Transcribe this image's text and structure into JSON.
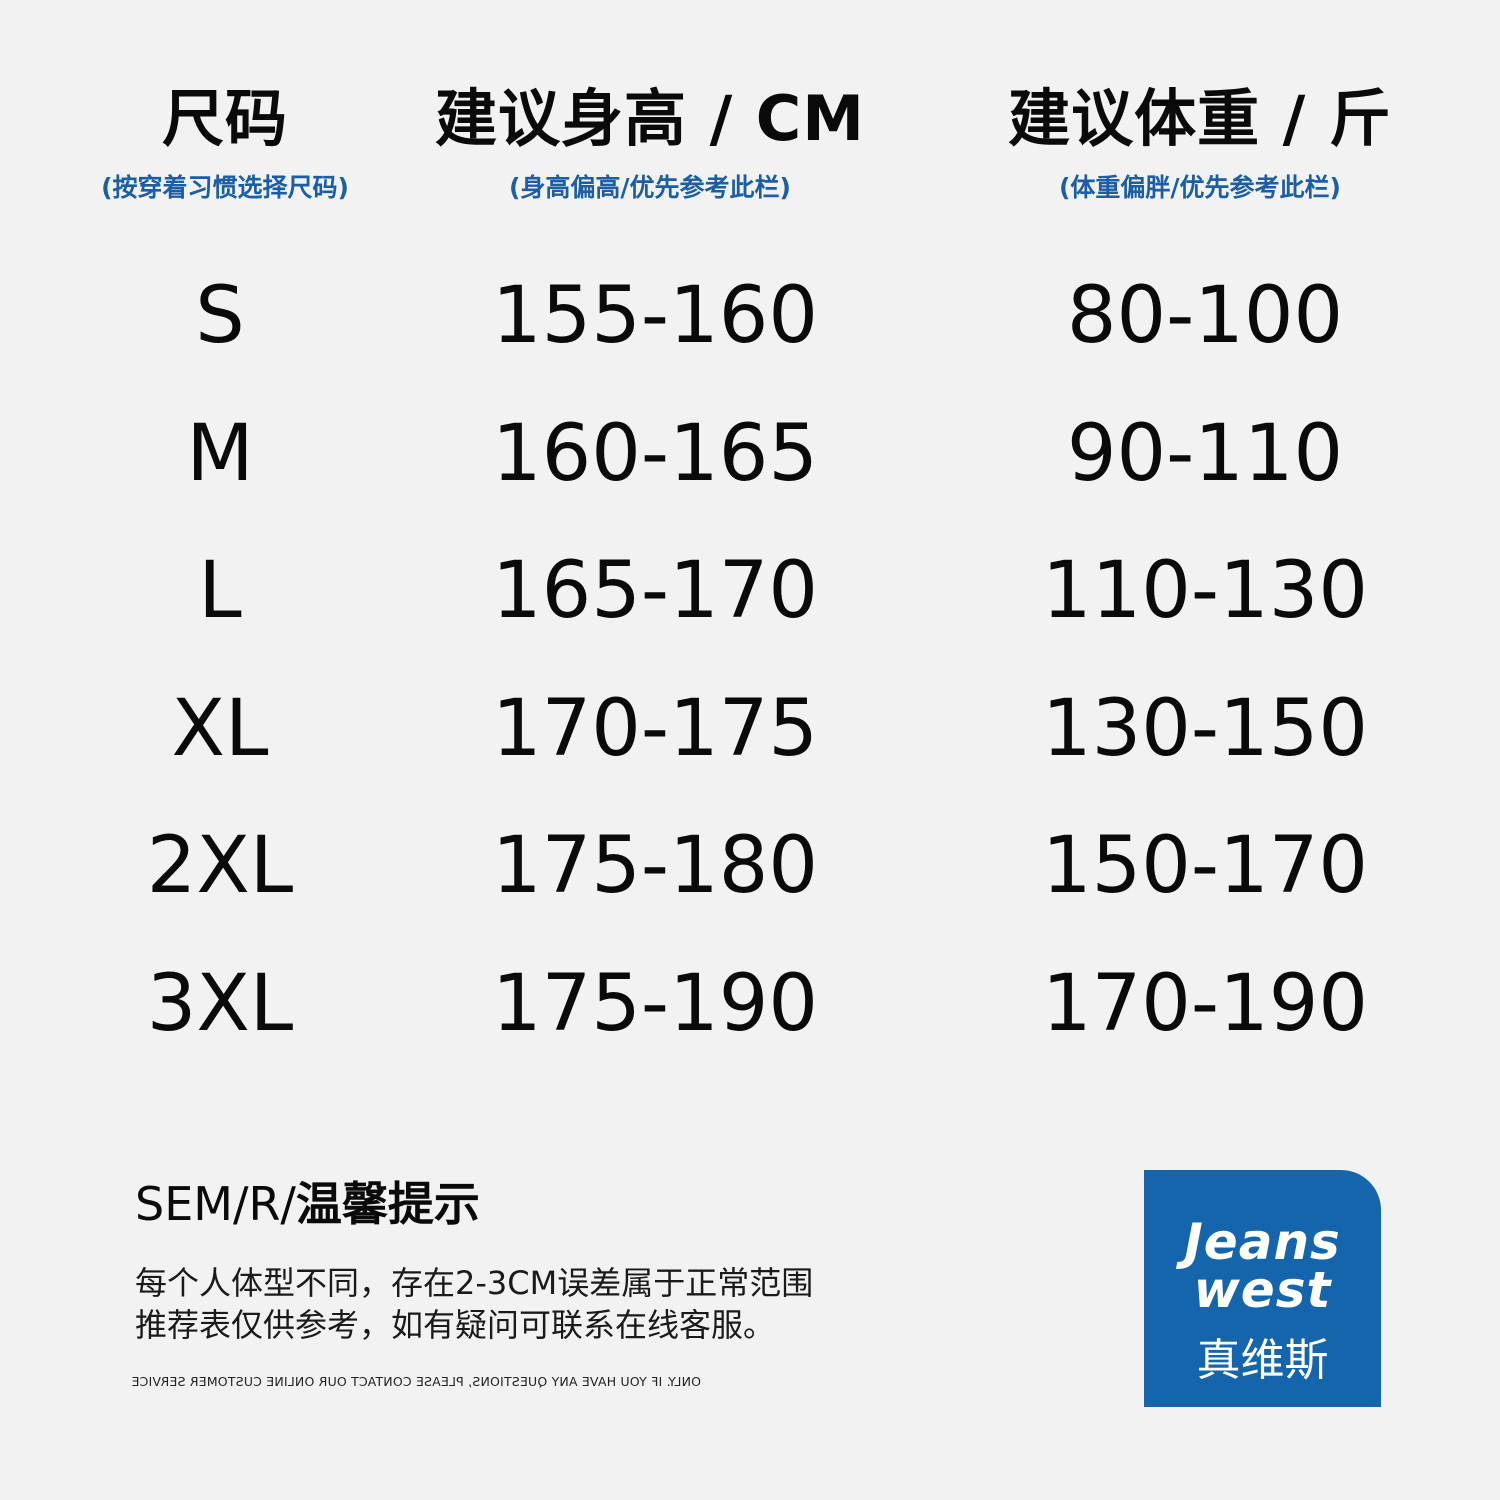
{
  "headers": [
    {
      "title": "尺码",
      "subtitle": "(按穿着习惯选择尺码)"
    },
    {
      "title": "建议身高 / CM",
      "subtitle": "(身高偏高/优先参考此栏)"
    },
    {
      "title": "建议体重 / 斤",
      "subtitle": "(体重偏胖/优先参考此栏)"
    }
  ],
  "rows": [
    {
      "size": "S",
      "height": "155-160",
      "weight": "80-100"
    },
    {
      "size": "M",
      "height": "160-165",
      "weight": "90-110"
    },
    {
      "size": "L",
      "height": "165-170",
      "weight": "110-130"
    },
    {
      "size": "XL",
      "height": "170-175",
      "weight": "130-150"
    },
    {
      "size": "2XL",
      "height": "175-180",
      "weight": "150-170"
    },
    {
      "size": "3XL",
      "height": "175-190",
      "weight": "170-190"
    }
  ],
  "tip": {
    "prefix": "SEM/R/",
    "title": "温馨提示",
    "line1": "每个人体型不同，存在2-3CM误差属于正常范围",
    "line2": "推荐表仅供参考，如有疑问可联系在线客服。",
    "mirrored": "ONLY. IF YOU HAVE ANY QUESTIONS, PLEASE CONTACT OUR ONLINE CUSTOMER SERVICE"
  },
  "logo": {
    "line1": "Jeans",
    "line2": "west",
    "cn": "真维斯"
  },
  "colors": {
    "accent": "#1b5ea6",
    "logo_bg": "#1565ac",
    "background": "#f2f2f2"
  }
}
